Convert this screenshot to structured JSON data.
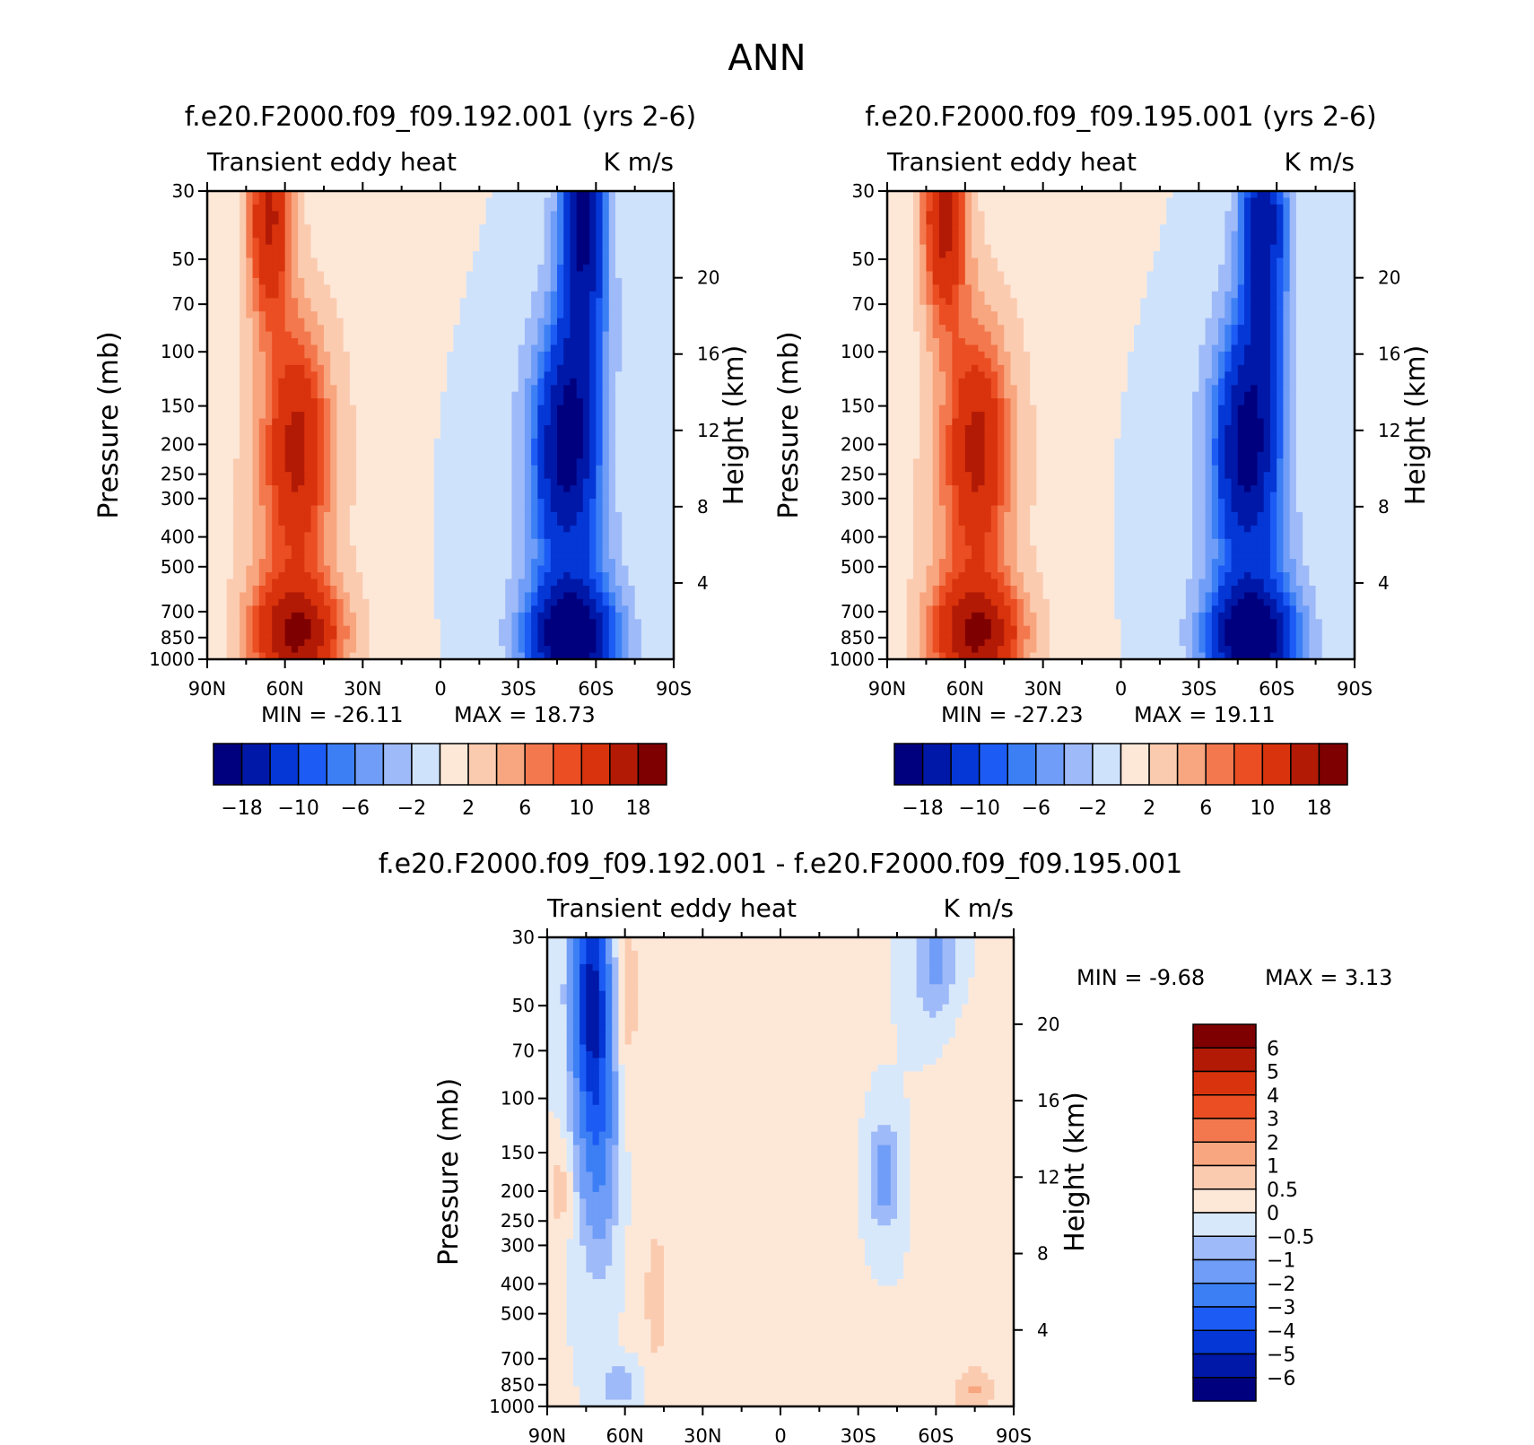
{
  "figure": {
    "main_title": "ANN"
  },
  "colors": {
    "ab_scale": [
      "#00007f",
      "#0018a8",
      "#0437d6",
      "#1c5cf4",
      "#3c7ff5",
      "#6f9df7",
      "#9fbaf8",
      "#cfe2fb",
      "#fde8d8",
      "#fbcbb0",
      "#f8a67f",
      "#f3784e",
      "#eb4e22",
      "#d8330c",
      "#b21a06",
      "#7f0000"
    ],
    "diff_scale": [
      "#00007f",
      "#0018a8",
      "#0437d6",
      "#1c5cf4",
      "#3c7ff5",
      "#6f9df7",
      "#9fbaf8",
      "#d8e8fb",
      "#fde8d8",
      "#fbcbb0",
      "#f8a67f",
      "#f3784e",
      "#eb4e22",
      "#d8330c",
      "#b21a06",
      "#7f0000"
    ]
  },
  "chart_data": [
    {
      "type": "heatmap",
      "title": "f.e20.F2000.f09_f09.192.001 (yrs 2-6)",
      "subtitle_left": "Transient eddy heat",
      "subtitle_right": "K m/s",
      "ylabel": "Pressure (mb)",
      "ylabel_right": "Height (km)",
      "x_ticks": [
        "90N",
        "60N",
        "30N",
        "0",
        "30S",
        "60S",
        "90S"
      ],
      "xlim": [
        90,
        -90
      ],
      "y_ticks": [
        30,
        50,
        70,
        100,
        150,
        200,
        250,
        300,
        400,
        500,
        700,
        850,
        1000
      ],
      "ylim": [
        30,
        1000
      ],
      "y_right_ticks": [
        20,
        16,
        12,
        8,
        4
      ],
      "min_label": "MIN = -26.11",
      "max_label": "MAX = 18.73",
      "colorbar_labels": [
        "-18",
        "-10",
        "-6",
        "-2",
        "2",
        "6",
        "10",
        "18"
      ],
      "colorbar_levels": [
        -18,
        -14,
        -10,
        -8,
        -6,
        -4,
        -2,
        0,
        2,
        4,
        6,
        8,
        10,
        14,
        18
      ],
      "field": {
        "features": [
          {
            "lat": 66,
            "logp_center": 1.55,
            "lat_width": 6,
            "logp_width": 0.25,
            "value": 14
          },
          {
            "lat": 55,
            "logp_center": 2.3,
            "lat_width": 8,
            "logp_width": 0.25,
            "value": 11
          },
          {
            "lat": 55,
            "logp_center": 2.92,
            "lat_width": 12,
            "logp_width": 0.12,
            "value": 15
          },
          {
            "lat": 60,
            "logp_center": 2.6,
            "lat_width": 14,
            "logp_width": 0.55,
            "value": 5
          },
          {
            "lat": 20,
            "logp_center": 2.0,
            "lat_width": 20,
            "logp_width": 0.9,
            "value": 1.5
          },
          {
            "lat": -55,
            "logp_center": 1.55,
            "lat_width": 6,
            "logp_width": 0.35,
            "value": -18
          },
          {
            "lat": -48,
            "logp_center": 2.3,
            "lat_width": 8,
            "logp_width": 0.25,
            "value": -15
          },
          {
            "lat": -50,
            "logp_center": 2.93,
            "lat_width": 11,
            "logp_width": 0.12,
            "value": -20
          },
          {
            "lat": -52,
            "logp_center": 2.6,
            "lat_width": 14,
            "logp_width": 0.55,
            "value": -6
          },
          {
            "lat": -70,
            "logp_center": 2.4,
            "lat_width": 8,
            "logp_width": 0.25,
            "value": 1.5
          },
          {
            "lat": -5,
            "logp_center": 2.4,
            "lat_width": 18,
            "logp_width": 0.5,
            "value": -1
          }
        ]
      }
    },
    {
      "type": "heatmap",
      "title": "f.e20.F2000.f09_f09.195.001 (yrs 2-6)",
      "subtitle_left": "Transient eddy heat",
      "subtitle_right": "K m/s",
      "ylabel": "Pressure (mb)",
      "ylabel_right": "Height (km)",
      "x_ticks": [
        "90N",
        "60N",
        "30N",
        "0",
        "30S",
        "60S",
        "90S"
      ],
      "xlim": [
        90,
        -90
      ],
      "y_ticks": [
        30,
        50,
        70,
        100,
        150,
        200,
        250,
        300,
        400,
        500,
        700,
        850,
        1000
      ],
      "ylim": [
        30,
        1000
      ],
      "y_right_ticks": [
        20,
        16,
        12,
        8,
        4
      ],
      "min_label": "MIN = -27.23",
      "max_label": "MAX = 19.11",
      "colorbar_labels": [
        "-18",
        "-10",
        "-6",
        "-2",
        "2",
        "6",
        "10",
        "18"
      ],
      "colorbar_levels": [
        -18,
        -14,
        -10,
        -8,
        -6,
        -4,
        -2,
        0,
        2,
        4,
        6,
        8,
        10,
        14,
        18
      ],
      "field": {
        "features": [
          {
            "lat": 68,
            "logp_center": 1.55,
            "lat_width": 6,
            "logp_width": 0.25,
            "value": 15
          },
          {
            "lat": 55,
            "logp_center": 2.3,
            "lat_width": 8,
            "logp_width": 0.25,
            "value": 11
          },
          {
            "lat": 55,
            "logp_center": 2.92,
            "lat_width": 12,
            "logp_width": 0.12,
            "value": 15
          },
          {
            "lat": 60,
            "logp_center": 2.6,
            "lat_width": 14,
            "logp_width": 0.55,
            "value": 5
          },
          {
            "lat": 20,
            "logp_center": 2.0,
            "lat_width": 20,
            "logp_width": 0.9,
            "value": 1.5
          },
          {
            "lat": -55,
            "logp_center": 1.55,
            "lat_width": 6,
            "logp_width": 0.35,
            "value": -16
          },
          {
            "lat": -48,
            "logp_center": 2.3,
            "lat_width": 8,
            "logp_width": 0.25,
            "value": -15
          },
          {
            "lat": -50,
            "logp_center": 2.93,
            "lat_width": 11,
            "logp_width": 0.12,
            "value": -20
          },
          {
            "lat": -52,
            "logp_center": 2.6,
            "lat_width": 14,
            "logp_width": 0.55,
            "value": -6
          },
          {
            "lat": -70,
            "logp_center": 2.4,
            "lat_width": 8,
            "logp_width": 0.25,
            "value": 1.5
          },
          {
            "lat": -5,
            "logp_center": 2.4,
            "lat_width": 18,
            "logp_width": 0.5,
            "value": -1
          }
        ]
      }
    },
    {
      "type": "heatmap",
      "title": "f.e20.F2000.f09_f09.192.001 - f.e20.F2000.f09_f09.195.001",
      "subtitle_left": "Transient eddy heat",
      "subtitle_right": "K m/s",
      "ylabel": "Pressure (mb)",
      "ylabel_right": "Height (km)",
      "x_ticks": [
        "90N",
        "60N",
        "30N",
        "0",
        "30S",
        "60S",
        "90S"
      ],
      "xlim": [
        90,
        -90
      ],
      "y_ticks": [
        30,
        50,
        70,
        100,
        150,
        200,
        250,
        300,
        400,
        500,
        700,
        850,
        1000
      ],
      "ylim": [
        30,
        1000
      ],
      "y_right_ticks": [
        20,
        16,
        12,
        8,
        4
      ],
      "min_label": "MIN = -9.68",
      "max_label": "MAX = 3.13",
      "colorbar_labels": [
        "6",
        "5",
        "4",
        "3",
        "2",
        "1",
        "0.5",
        "0",
        "-0.5",
        "-1",
        "-2",
        "-3",
        "-4",
        "-5",
        "-6"
      ],
      "colorbar_levels": [
        -6,
        -5,
        -4,
        -3,
        -2,
        -1,
        -0.5,
        0,
        0.5,
        1,
        2,
        3,
        4,
        5,
        6
      ],
      "field": {
        "features": [
          {
            "lat": 73,
            "logp_center": 1.65,
            "lat_width": 5,
            "logp_width": 0.3,
            "value": -5
          },
          {
            "lat": 70,
            "logp_center": 2.1,
            "lat_width": 5,
            "logp_width": 0.3,
            "value": -2
          },
          {
            "lat": 60,
            "logp_center": 1.65,
            "lat_width": 4,
            "logp_width": 0.25,
            "value": 0.8
          },
          {
            "lat": 85,
            "logp_center": 2.3,
            "lat_width": 3,
            "logp_width": 0.1,
            "value": 0.8
          },
          {
            "lat": 20,
            "logp_center": 2.2,
            "lat_width": 25,
            "logp_width": 0.8,
            "value": 0.3
          },
          {
            "lat": 48,
            "logp_center": 2.65,
            "lat_width": 3,
            "logp_width": 0.15,
            "value": 0.8
          },
          {
            "lat": -40,
            "logp_center": 2.25,
            "lat_width": 4,
            "logp_width": 0.12,
            "value": -1.5
          },
          {
            "lat": -60,
            "logp_center": 1.55,
            "lat_width": 6,
            "logp_width": 0.15,
            "value": -1.2
          },
          {
            "lat": -70,
            "logp_center": 2.2,
            "lat_width": 8,
            "logp_width": 0.35,
            "value": 0.4
          },
          {
            "lat": -75,
            "logp_center": 2.95,
            "lat_width": 6,
            "logp_width": 0.06,
            "value": 1.0
          },
          {
            "lat": 62,
            "logp_center": 2.93,
            "lat_width": 5,
            "logp_width": 0.05,
            "value": -1.0
          }
        ]
      }
    }
  ]
}
